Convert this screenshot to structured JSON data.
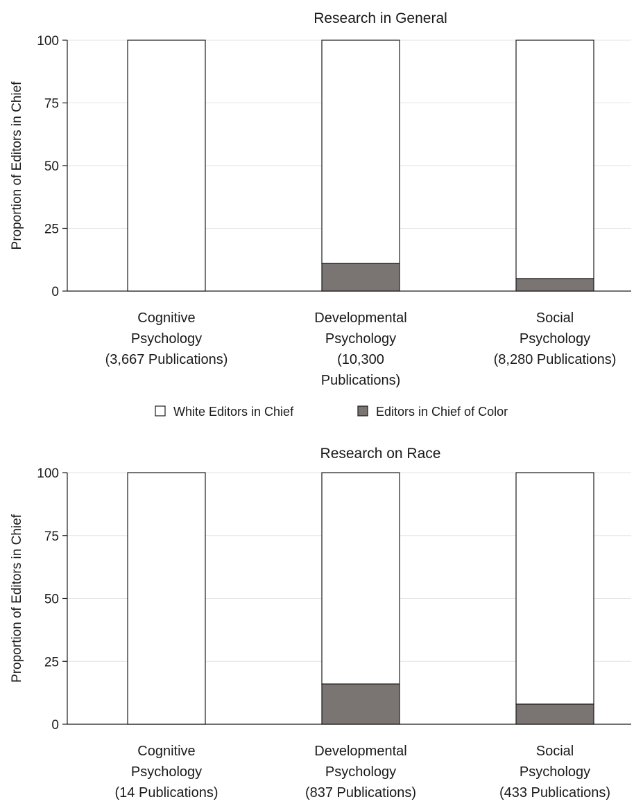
{
  "chart_data": [
    {
      "type": "bar",
      "stacked": true,
      "title": "Research in General",
      "ylabel": "Proportion of Editors in Chief",
      "xlabel": "",
      "ylim": [
        0,
        100
      ],
      "yticks": [
        "0",
        "25",
        "50",
        "75",
        "100"
      ],
      "grid": true,
      "categories": [
        [
          "Cognitive",
          "Psychology",
          "(3,667 Publications)"
        ],
        [
          "Developmental",
          "Psychology",
          "(10,300",
          "Publications)"
        ],
        [
          "Social",
          "Psychology",
          "(8,280 Publications)"
        ]
      ],
      "series": [
        {
          "name": "Editors in Chief of Color",
          "color": "#7a7573",
          "values": [
            0,
            11,
            5
          ]
        },
        {
          "name": "White Editors in Chief",
          "color": "#ffffff",
          "values": [
            100,
            89,
            95
          ]
        }
      ]
    },
    {
      "type": "bar",
      "stacked": true,
      "title": "Research on Race",
      "ylabel": "Proportion of Editors in Chief",
      "xlabel": "",
      "ylim": [
        0,
        100
      ],
      "yticks": [
        "0",
        "25",
        "50",
        "75",
        "100"
      ],
      "grid": true,
      "categories": [
        [
          "Cognitive",
          "Psychology",
          "(14 Publications)"
        ],
        [
          "Developmental",
          "Psychology",
          "(837 Publications)"
        ],
        [
          "Social",
          "Psychology",
          "(433 Publications)"
        ]
      ],
      "series": [
        {
          "name": "Editors in Chief of Color",
          "color": "#7a7573",
          "values": [
            0,
            16,
            8
          ]
        },
        {
          "name": "White Editors in Chief",
          "color": "#ffffff",
          "values": [
            100,
            84,
            92
          ]
        }
      ]
    }
  ],
  "legend": {
    "placement": "between-panels",
    "items": [
      {
        "label": "White Editors in Chief",
        "color": "#ffffff"
      },
      {
        "label": "Editors in Chief of Color",
        "color": "#7a7573"
      }
    ]
  }
}
